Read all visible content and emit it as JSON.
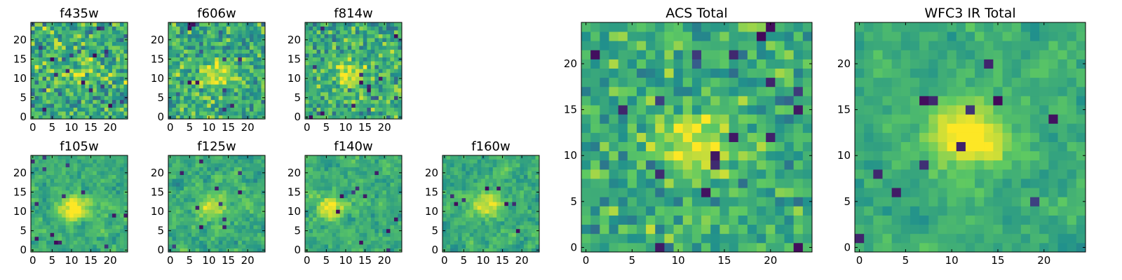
{
  "figure": {
    "colormap": "viridis",
    "colormap_stops": [
      "#440154",
      "#3b528b",
      "#21918c",
      "#5ec962",
      "#fde725"
    ],
    "frame_color": "#000000",
    "background": "#ffffff"
  },
  "chart_data": [
    {
      "type": "heatmap",
      "title": "f435w",
      "grid_size": [
        25,
        25
      ],
      "xlim": [
        0,
        24
      ],
      "ylim": [
        0,
        24
      ],
      "xticks": [
        "0",
        "5",
        "10",
        "15",
        "20"
      ],
      "yticks": [
        "0",
        "5",
        "10",
        "15",
        "20"
      ],
      "source_peak": [
        12,
        11
      ],
      "peak_strength": 0.25,
      "noise_level": 0.55,
      "dark_pixel_count": 14,
      "smoothing": 0,
      "seed": 11
    },
    {
      "type": "heatmap",
      "title": "f606w",
      "grid_size": [
        25,
        25
      ],
      "xlim": [
        0,
        24
      ],
      "ylim": [
        0,
        24
      ],
      "xticks": [
        "0",
        "5",
        "10",
        "15",
        "20"
      ],
      "yticks": [
        "0",
        "5",
        "10",
        "15",
        "20"
      ],
      "source_peak": [
        12,
        11
      ],
      "peak_strength": 0.35,
      "noise_level": 0.5,
      "dark_pixel_count": 10,
      "smoothing": 0,
      "seed": 23
    },
    {
      "type": "heatmap",
      "title": "f814w",
      "grid_size": [
        25,
        25
      ],
      "xlim": [
        0,
        24
      ],
      "ylim": [
        0,
        24
      ],
      "xticks": [
        "0",
        "5",
        "10",
        "15",
        "20"
      ],
      "yticks": [
        "0",
        "5",
        "10",
        "15",
        "20"
      ],
      "source_peak": [
        11,
        11
      ],
      "peak_strength": 0.35,
      "noise_level": 0.5,
      "dark_pixel_count": 12,
      "smoothing": 0,
      "seed": 37
    },
    {
      "type": "heatmap",
      "title": "f105w",
      "grid_size": [
        25,
        25
      ],
      "xlim": [
        0,
        24
      ],
      "ylim": [
        0,
        24
      ],
      "xticks": [
        "0",
        "5",
        "10",
        "15",
        "20"
      ],
      "yticks": [
        "0",
        "5",
        "10",
        "15",
        "20"
      ],
      "source_peak": [
        11,
        11
      ],
      "peak_strength": 0.45,
      "noise_level": 0.45,
      "dark_pixel_count": 14,
      "smoothing": 1,
      "seed": 41
    },
    {
      "type": "heatmap",
      "title": "f125w",
      "grid_size": [
        25,
        25
      ],
      "xlim": [
        0,
        24
      ],
      "ylim": [
        0,
        24
      ],
      "xticks": [
        "0",
        "5",
        "10",
        "15",
        "20"
      ],
      "yticks": [
        "0",
        "5",
        "10",
        "15",
        "20"
      ],
      "source_peak": [
        11,
        11
      ],
      "peak_strength": 0.3,
      "noise_level": 0.45,
      "dark_pixel_count": 12,
      "smoothing": 1,
      "seed": 53
    },
    {
      "type": "heatmap",
      "title": "f140w",
      "grid_size": [
        25,
        25
      ],
      "xlim": [
        0,
        24
      ],
      "ylim": [
        0,
        24
      ],
      "xticks": [
        "0",
        "5",
        "10",
        "15",
        "20"
      ],
      "yticks": [
        "0",
        "5",
        "10",
        "15",
        "20"
      ],
      "source_peak": [
        6,
        11
      ],
      "peak_strength": 0.35,
      "noise_level": 0.45,
      "dark_pixel_count": 10,
      "smoothing": 1,
      "seed": 67
    },
    {
      "type": "heatmap",
      "title": "f160w",
      "grid_size": [
        25,
        25
      ],
      "xlim": [
        0,
        24
      ],
      "ylim": [
        0,
        24
      ],
      "xticks": [
        "0",
        "5",
        "10",
        "15",
        "20"
      ],
      "yticks": [
        "0",
        "5",
        "10",
        "15",
        "20"
      ],
      "source_peak": [
        11,
        12
      ],
      "peak_strength": 0.35,
      "noise_level": 0.45,
      "dark_pixel_count": 8,
      "smoothing": 1,
      "seed": 79
    },
    {
      "type": "heatmap",
      "title": "ACS Total",
      "grid_size": [
        25,
        25
      ],
      "xlim": [
        0,
        24
      ],
      "ylim": [
        0,
        24
      ],
      "xticks": [
        "0",
        "5",
        "10",
        "15",
        "20"
      ],
      "yticks": [
        "0",
        "5",
        "10",
        "15",
        "20"
      ],
      "source_peak": [
        12,
        11
      ],
      "peak_strength": 0.4,
      "noise_level": 0.42,
      "dark_pixel_count": 18,
      "smoothing": 0,
      "seed": 97
    },
    {
      "type": "heatmap",
      "title": "WFC3 IR Total",
      "grid_size": [
        25,
        25
      ],
      "xlim": [
        0,
        24
      ],
      "ylim": [
        0,
        24
      ],
      "xticks": [
        "0",
        "5",
        "10",
        "15",
        "20"
      ],
      "yticks": [
        "0",
        "5",
        "10",
        "15",
        "20"
      ],
      "source_peak": [
        12,
        12
      ],
      "peak_strength": 0.5,
      "noise_level": 0.35,
      "dark_pixel_count": 12,
      "smoothing": 1,
      "seed": 113
    }
  ]
}
